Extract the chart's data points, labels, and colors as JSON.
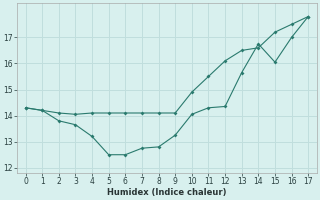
{
  "line1_x": [
    0,
    1,
    2,
    3,
    4,
    5,
    6,
    7,
    8,
    9,
    10,
    11,
    12,
    13,
    14,
    15,
    16,
    17
  ],
  "line1_y": [
    14.3,
    14.2,
    14.1,
    14.05,
    14.1,
    14.1,
    14.1,
    14.1,
    14.1,
    14.1,
    14.9,
    15.5,
    16.1,
    16.5,
    16.6,
    17.2,
    17.5,
    17.8
  ],
  "line2_x": [
    0,
    1,
    2,
    3,
    4,
    5,
    6,
    7,
    8,
    9,
    10,
    11,
    12,
    13,
    14,
    15,
    16,
    17
  ],
  "line2_y": [
    14.3,
    14.2,
    13.8,
    13.65,
    13.2,
    12.5,
    12.5,
    12.75,
    12.8,
    13.25,
    14.05,
    14.3,
    14.35,
    15.65,
    16.75,
    16.05,
    17.0,
    17.8
  ],
  "line_color": "#2a7a6e",
  "bg_color": "#d8f0ee",
  "grid_color": "#c0dedd",
  "xlabel": "Humidex (Indice chaleur)",
  "ylim": [
    11.8,
    18.3
  ],
  "xlim": [
    -0.5,
    17.5
  ],
  "yticks": [
    12,
    13,
    14,
    15,
    16,
    17
  ],
  "xticks": [
    0,
    1,
    2,
    3,
    4,
    5,
    6,
    7,
    8,
    9,
    10,
    11,
    12,
    13,
    14,
    15,
    16,
    17
  ]
}
